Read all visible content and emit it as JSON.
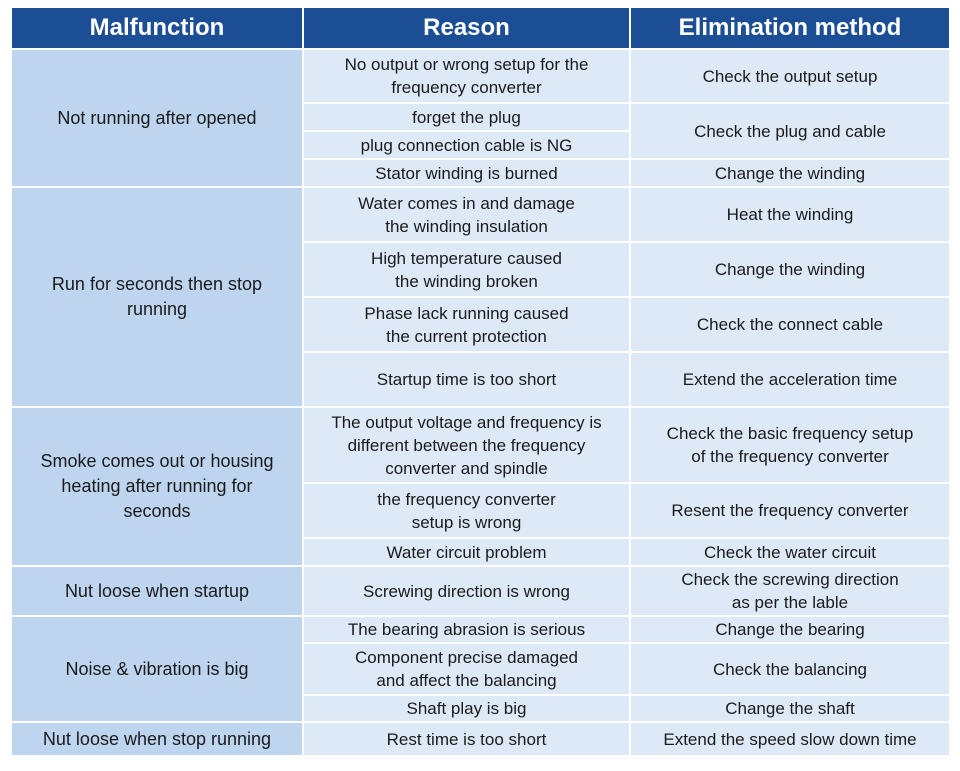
{
  "headers": {
    "malfunction": "Malfunction",
    "reason": "Reason",
    "elimination": "Elimination method"
  },
  "groups": [
    {
      "malfunction": "Not running after opened",
      "reasons": [
        "No output or wrong setup for the\nfrequency converter",
        "forget the plug",
        "plug connection cable is NG",
        "Stator winding is burned"
      ],
      "methods": [
        "Check the output setup",
        "Check the plug and cable",
        "Change the winding"
      ]
    },
    {
      "malfunction": "Run for seconds then stop\nrunning",
      "reasons": [
        "Water comes in and damage\nthe winding insulation",
        "High temperature caused\nthe winding broken",
        "Phase lack running caused\nthe current protection",
        "Startup time is too short"
      ],
      "methods": [
        "Heat the winding",
        "Change the winding",
        "Check the connect cable",
        "Extend the acceleration time"
      ]
    },
    {
      "malfunction": "Smoke comes out or housing\nheating after running for\nseconds",
      "reasons": [
        "The output voltage and frequency is\ndifferent between the frequency\nconverter and spindle",
        "the frequency converter\nsetup is wrong",
        "Water circuit problem"
      ],
      "methods": [
        "Check the basic frequency setup\nof the frequency converter",
        "Resent the frequency converter",
        "Check the water circuit"
      ]
    },
    {
      "malfunction": "Nut loose when startup",
      "reasons": [
        "Screwing direction is wrong"
      ],
      "methods": [
        "Check the screwing direction\nas per the lable"
      ]
    },
    {
      "malfunction": "Noise & vibration is big",
      "reasons": [
        "The bearing abrasion is serious",
        "Component precise damaged\nand affect the balancing",
        "Shaft play is big"
      ],
      "methods": [
        "Change the bearing",
        "Check the balancing",
        "Change the shaft"
      ]
    },
    {
      "malfunction": "Nut loose when stop running",
      "reasons": [
        "Rest time is too short"
      ],
      "methods": [
        "Extend the speed slow down time"
      ]
    }
  ],
  "colors": {
    "header_bg": "#1c4e96",
    "malfunction_bg": "#bdd5ef",
    "cell_bg": "#dde9f7",
    "border": "#ffffff"
  }
}
